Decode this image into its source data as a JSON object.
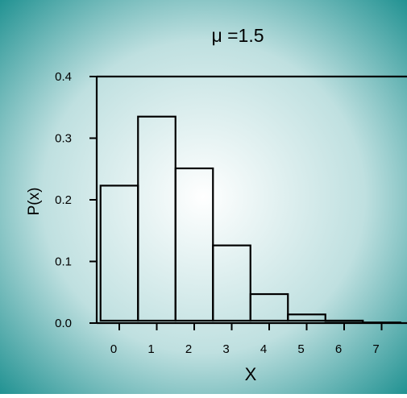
{
  "chart_data": {
    "type": "bar",
    "title": "μ =1.5",
    "xlabel": "X",
    "ylabel": "P(x)",
    "categories": [
      "0",
      "1",
      "2",
      "3",
      "4",
      "5",
      "6",
      "7"
    ],
    "values": [
      0.223,
      0.335,
      0.251,
      0.126,
      0.047,
      0.014,
      0.004,
      0.001
    ],
    "xlim": [
      -0.5,
      7.5
    ],
    "ylim": [
      0,
      0.4
    ],
    "yticks": [
      "0.0",
      "0.1",
      "0.2",
      "0.3",
      "0.4"
    ],
    "grid": false,
    "legend": "none",
    "colors": {
      "background_edge": "#1b8f8f",
      "background_center": "#ffffff",
      "bar_stroke": "#000000",
      "axis": "#000000"
    }
  }
}
